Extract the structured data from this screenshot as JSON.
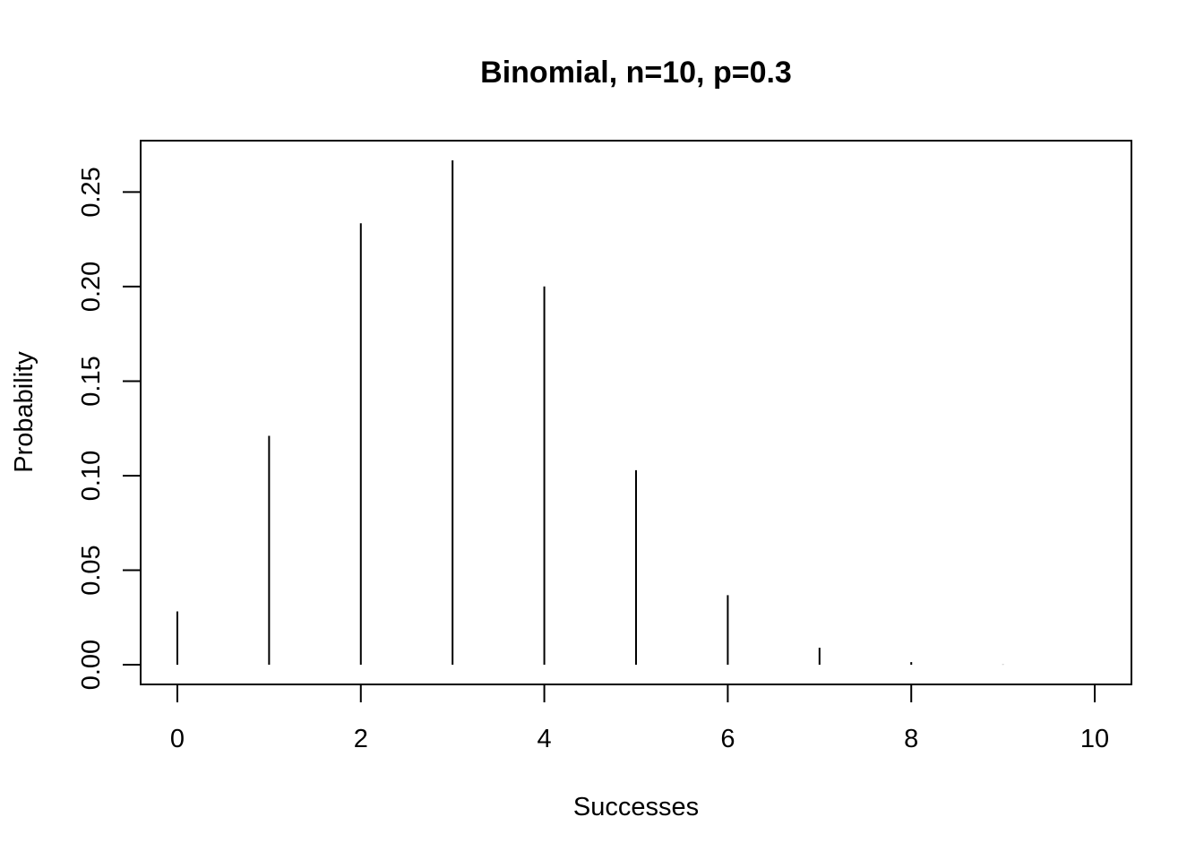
{
  "chart_data": {
    "type": "bar",
    "style": "vertical-lines",
    "title": "Binomial, n=10, p=0.3",
    "xlabel": "Successes",
    "ylabel": "Probability",
    "x": [
      0,
      1,
      2,
      3,
      4,
      5,
      6,
      7,
      8,
      9,
      10
    ],
    "values": [
      0.0282,
      0.1211,
      0.2335,
      0.2668,
      0.2001,
      0.1029,
      0.0368,
      0.009,
      0.0014,
      0.0001,
      0.0
    ],
    "xlim": [
      -0.4,
      10.4
    ],
    "ylim": [
      -0.0104,
      0.2772
    ],
    "x_ticks": [
      0,
      2,
      4,
      6,
      8,
      10
    ],
    "x_tick_labels": [
      "0",
      "2",
      "4",
      "6",
      "8",
      "10"
    ],
    "y_ticks": [
      0.0,
      0.05,
      0.1,
      0.15,
      0.2,
      0.25
    ],
    "y_tick_labels": [
      "0.00",
      "0.05",
      "0.10",
      "0.15",
      "0.20",
      "0.25"
    ],
    "grid": false,
    "legend": "none",
    "colors": {
      "bars": "#000000",
      "axes": "#000000",
      "background": "#ffffff"
    }
  }
}
